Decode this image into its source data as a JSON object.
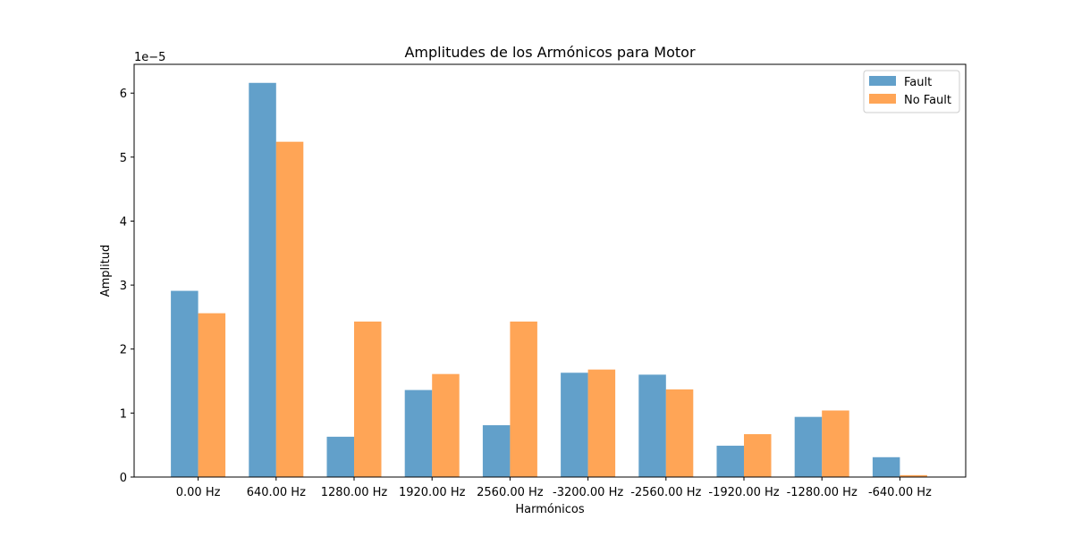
{
  "chart_data": {
    "type": "bar",
    "title": "Amplitudes de los Armónicos para Motor",
    "xlabel": "Harmónicos",
    "ylabel": "Amplitud",
    "y_offset_label": "1e−5",
    "ylim": [
      0,
      6.45
    ],
    "yticks": [
      "0",
      "1",
      "2",
      "3",
      "4",
      "5",
      "6"
    ],
    "categories": [
      "0.00 Hz",
      "640.00 Hz",
      "1280.00 Hz",
      "1920.00 Hz",
      "2560.00 Hz",
      "-3200.00 Hz",
      "-2560.00 Hz",
      "-1920.00 Hz",
      "-1280.00 Hz",
      "-640.00 Hz"
    ],
    "series": [
      {
        "name": "Fault",
        "color": "#1f77b4",
        "values": [
          2.91,
          6.16,
          0.63,
          1.36,
          0.81,
          1.63,
          1.6,
          0.49,
          0.94,
          0.31
        ]
      },
      {
        "name": "No Fault",
        "color": "#ff7f0e",
        "values": [
          2.56,
          5.24,
          2.43,
          1.61,
          2.43,
          1.68,
          1.37,
          0.67,
          1.04,
          0.03
        ]
      }
    ],
    "legend_position": "top-right",
    "grid": false
  }
}
